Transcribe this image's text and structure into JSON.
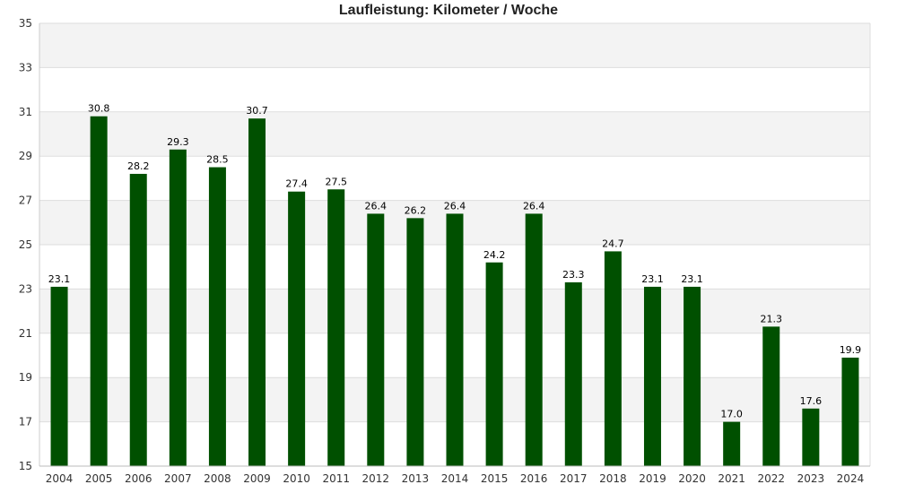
{
  "chart_data": {
    "type": "bar",
    "title": "Laufleistung: Kilometer / Woche",
    "xlabel": "",
    "ylabel": "",
    "categories": [
      "2004",
      "2005",
      "2006",
      "2007",
      "2008",
      "2009",
      "2010",
      "2011",
      "2012",
      "2013",
      "2014",
      "2015",
      "2016",
      "2017",
      "2018",
      "2019",
      "2020",
      "2021",
      "2022",
      "2023",
      "2024"
    ],
    "values": [
      23.1,
      30.8,
      28.2,
      29.3,
      28.5,
      30.7,
      27.4,
      27.5,
      26.4,
      26.2,
      26.4,
      24.2,
      26.4,
      23.3,
      24.7,
      23.1,
      23.1,
      17.0,
      21.3,
      17.6,
      19.9
    ],
    "data_labels": [
      "23.1",
      "30.8",
      "28.2",
      "29.3",
      "28.5",
      "30.7",
      "27.4",
      "27.5",
      "26.4",
      "26.2",
      "26.4",
      "24.2",
      "26.4",
      "23.3",
      "24.7",
      "23.1",
      "23.1",
      "17.0",
      "21.3",
      "17.6",
      "19.9"
    ],
    "ylim": [
      15,
      35
    ],
    "yticks": [
      15,
      17,
      19,
      21,
      23,
      25,
      27,
      29,
      31,
      33,
      35
    ],
    "grid": true,
    "legend": "none",
    "colors": {
      "bar": "#005000",
      "band_alt": "#f3f3f3",
      "grid": "#dddddd",
      "text": "#333333"
    }
  }
}
